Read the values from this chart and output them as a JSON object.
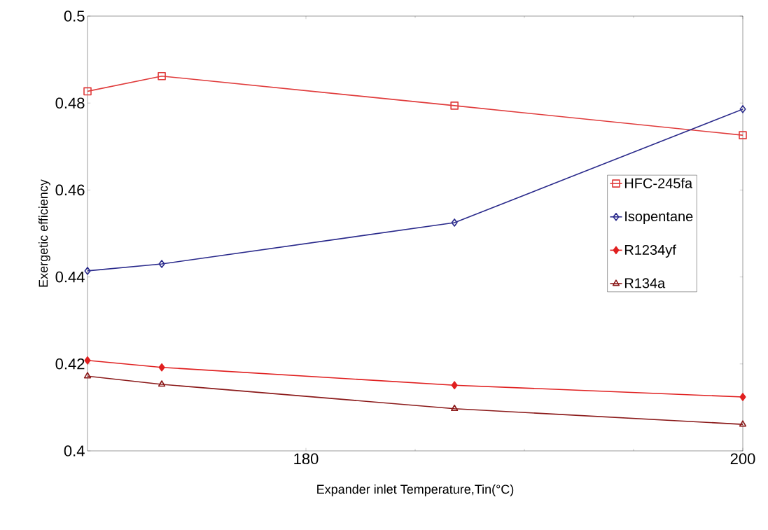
{
  "chart_data": {
    "type": "line",
    "xlabel": "Expander inlet Temperature,Tin(°C)",
    "ylabel": "Exergetic efficiency",
    "xlim": [
      170,
      200
    ],
    "xticks": [
      180,
      200
    ],
    "ylim": [
      0.4,
      0.5
    ],
    "yticks": [
      0.4,
      0.42,
      0.44,
      0.46,
      0.48,
      0.5
    ],
    "x": [
      170,
      173.4,
      186.8,
      200
    ],
    "legend": "right",
    "grid": false,
    "series": [
      {
        "name": "HFC-245fa",
        "color": "#e03c3c",
        "marker": "square",
        "values": [
          0.4827,
          0.4862,
          0.4794,
          0.4726
        ]
      },
      {
        "name": "Isopentane",
        "color": "#2b2b8c",
        "marker": "diamond",
        "values": [
          0.4414,
          0.443,
          0.4525,
          0.4786
        ]
      },
      {
        "name": "R1234yf",
        "color": "#e02020",
        "marker": "diamond*",
        "values": [
          0.4208,
          0.4192,
          0.4151,
          0.4124
        ]
      },
      {
        "name": "R134a",
        "color": "#8b1a1a",
        "marker": "triangle",
        "values": [
          0.4172,
          0.4153,
          0.4097,
          0.4061
        ]
      }
    ]
  }
}
